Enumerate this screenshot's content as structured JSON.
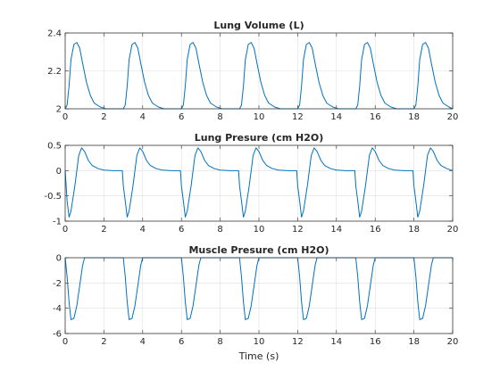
{
  "chart_data": [
    {
      "type": "line",
      "title": "Lung Volume (L)",
      "xlabel": "",
      "ylabel": "",
      "xlim": [
        0,
        20
      ],
      "ylim": [
        2,
        2.4
      ],
      "xticks": [
        "0",
        "2",
        "4",
        "6",
        "8",
        "10",
        "12",
        "14",
        "16",
        "18",
        "20"
      ],
      "yticks": [
        "2",
        "2.2",
        "2.4"
      ],
      "grid": true,
      "color": "#0072bd",
      "series": [
        {
          "x": [
            0,
            0.1,
            0.2,
            0.3,
            0.45,
            0.6,
            0.75,
            0.9,
            1.1,
            1.3,
            1.5,
            1.8,
            2.1,
            2.4,
            3.0,
            3.1,
            3.2,
            3.3,
            3.45,
            3.6,
            3.75,
            3.9,
            4.1,
            4.3,
            4.5,
            4.8,
            5.1,
            5.4,
            6.0,
            6.1,
            6.2,
            6.3,
            6.45,
            6.6,
            6.75,
            6.9,
            7.1,
            7.3,
            7.5,
            7.8,
            8.1,
            8.4,
            9.0,
            9.1,
            9.2,
            9.3,
            9.45,
            9.6,
            9.75,
            9.9,
            10.1,
            10.3,
            10.5,
            10.8,
            11.1,
            11.4,
            12.0,
            12.1,
            12.2,
            12.3,
            12.45,
            12.6,
            12.75,
            12.9,
            13.1,
            13.3,
            13.5,
            13.8,
            14.1,
            14.4,
            15.0,
            15.1,
            15.2,
            15.3,
            15.45,
            15.6,
            15.75,
            15.9,
            16.1,
            16.3,
            16.5,
            16.8,
            17.1,
            17.4,
            18.0,
            18.1,
            18.2,
            18.3,
            18.45,
            18.6,
            18.75,
            18.9,
            19.1,
            19.3,
            19.5,
            19.8,
            20.0
          ],
          "values": [
            2.0,
            2.02,
            2.12,
            2.26,
            2.34,
            2.35,
            2.32,
            2.24,
            2.14,
            2.07,
            2.03,
            2.01,
            2.0,
            2.0,
            2.0,
            2.02,
            2.12,
            2.26,
            2.34,
            2.35,
            2.32,
            2.24,
            2.14,
            2.07,
            2.03,
            2.01,
            2.0,
            2.0,
            2.0,
            2.02,
            2.12,
            2.26,
            2.34,
            2.35,
            2.32,
            2.24,
            2.14,
            2.07,
            2.03,
            2.01,
            2.0,
            2.0,
            2.0,
            2.02,
            2.12,
            2.26,
            2.34,
            2.35,
            2.32,
            2.24,
            2.14,
            2.07,
            2.03,
            2.01,
            2.0,
            2.0,
            2.0,
            2.02,
            2.12,
            2.26,
            2.34,
            2.35,
            2.32,
            2.24,
            2.14,
            2.07,
            2.03,
            2.01,
            2.0,
            2.0,
            2.0,
            2.02,
            2.12,
            2.26,
            2.34,
            2.35,
            2.32,
            2.24,
            2.14,
            2.07,
            2.03,
            2.01,
            2.0,
            2.0,
            2.0,
            2.02,
            2.12,
            2.26,
            2.34,
            2.35,
            2.32,
            2.24,
            2.14,
            2.07,
            2.03,
            2.01,
            2.0
          ]
        }
      ]
    },
    {
      "type": "line",
      "title": "Lung Presure (cm H2O)",
      "xlabel": "",
      "ylabel": "",
      "xlim": [
        0,
        20
      ],
      "ylim": [
        -1,
        0.5
      ],
      "xticks": [
        "0",
        "2",
        "4",
        "6",
        "8",
        "10",
        "12",
        "14",
        "16",
        "18",
        "20"
      ],
      "yticks": [
        "-1",
        "-0.5",
        "0",
        "0.5"
      ],
      "grid": true,
      "color": "#0072bd",
      "series": [
        {
          "x": [
            0,
            0.1,
            0.2,
            0.3,
            0.5,
            0.7,
            0.85,
            1.0,
            1.2,
            1.4,
            1.7,
            2.0,
            2.5,
            2.95,
            3.0,
            3.1,
            3.2,
            3.3,
            3.5,
            3.7,
            3.85,
            4.0,
            4.2,
            4.4,
            4.7,
            5.0,
            5.5,
            5.95,
            6.0,
            6.1,
            6.2,
            6.3,
            6.5,
            6.7,
            6.85,
            7.0,
            7.2,
            7.4,
            7.7,
            8.0,
            8.5,
            8.95,
            9.0,
            9.1,
            9.2,
            9.3,
            9.5,
            9.7,
            9.85,
            10.0,
            10.2,
            10.4,
            10.7,
            11.0,
            11.5,
            11.95,
            12.0,
            12.1,
            12.2,
            12.3,
            12.5,
            12.7,
            12.85,
            13.0,
            13.2,
            13.4,
            13.7,
            14.0,
            14.5,
            14.95,
            15.0,
            15.1,
            15.2,
            15.3,
            15.5,
            15.7,
            15.85,
            16.0,
            16.2,
            16.4,
            16.7,
            17.0,
            17.5,
            17.95,
            18.0,
            18.1,
            18.2,
            18.3,
            18.5,
            18.7,
            18.85,
            19.0,
            19.2,
            19.4,
            19.7,
            20.0
          ],
          "values": [
            0.0,
            -0.6,
            -0.92,
            -0.8,
            -0.3,
            0.3,
            0.45,
            0.38,
            0.2,
            0.1,
            0.04,
            0.01,
            0.0,
            0.0,
            -0.3,
            -0.6,
            -0.92,
            -0.8,
            -0.3,
            0.3,
            0.45,
            0.38,
            0.2,
            0.1,
            0.04,
            0.01,
            0.0,
            0.0,
            -0.3,
            -0.6,
            -0.92,
            -0.8,
            -0.3,
            0.3,
            0.45,
            0.38,
            0.2,
            0.1,
            0.04,
            0.01,
            0.0,
            0.0,
            -0.3,
            -0.6,
            -0.92,
            -0.8,
            -0.3,
            0.3,
            0.45,
            0.38,
            0.2,
            0.1,
            0.04,
            0.01,
            0.0,
            0.0,
            -0.3,
            -0.6,
            -0.92,
            -0.8,
            -0.3,
            0.3,
            0.45,
            0.38,
            0.2,
            0.1,
            0.04,
            0.01,
            0.0,
            0.0,
            -0.3,
            -0.6,
            -0.92,
            -0.8,
            -0.3,
            0.3,
            0.45,
            0.38,
            0.2,
            0.1,
            0.04,
            0.01,
            0.0,
            0.0,
            -0.3,
            -0.6,
            -0.92,
            -0.8,
            -0.3,
            0.3,
            0.45,
            0.38,
            0.2,
            0.1,
            0.04,
            0.0
          ]
        }
      ]
    },
    {
      "type": "line",
      "title": "Muscle Presure (cm H2O)",
      "xlabel": "Time (s)",
      "ylabel": "",
      "xlim": [
        0,
        20
      ],
      "ylim": [
        -6,
        0
      ],
      "xticks": [
        "0",
        "2",
        "4",
        "6",
        "8",
        "10",
        "12",
        "14",
        "16",
        "18",
        "20"
      ],
      "yticks": [
        "-6",
        "-4",
        "-2",
        "0"
      ],
      "grid": true,
      "color": "#0072bd",
      "series": [
        {
          "x": [
            0,
            0.1,
            0.2,
            0.3,
            0.45,
            0.6,
            0.75,
            0.9,
            1.0,
            2.9,
            3.0,
            3.1,
            3.2,
            3.3,
            3.45,
            3.6,
            3.75,
            3.9,
            4.0,
            5.9,
            6.0,
            6.1,
            6.2,
            6.3,
            6.45,
            6.6,
            6.75,
            6.9,
            7.0,
            8.9,
            9.0,
            9.1,
            9.2,
            9.3,
            9.45,
            9.6,
            9.75,
            9.9,
            10.0,
            11.9,
            12.0,
            12.1,
            12.2,
            12.3,
            12.45,
            12.6,
            12.75,
            12.9,
            13.0,
            14.9,
            15.0,
            15.1,
            15.2,
            15.3,
            15.45,
            15.6,
            15.75,
            15.9,
            16.0,
            17.9,
            18.0,
            18.1,
            18.2,
            18.3,
            18.45,
            18.6,
            18.75,
            18.9,
            19.0,
            20.0
          ],
          "values": [
            0,
            -1.5,
            -3.5,
            -4.9,
            -4.8,
            -3.8,
            -2.2,
            -0.6,
            0,
            0,
            0,
            -1.5,
            -3.5,
            -4.9,
            -4.8,
            -3.8,
            -2.2,
            -0.6,
            0,
            0,
            0,
            -1.5,
            -3.5,
            -4.9,
            -4.8,
            -3.8,
            -2.2,
            -0.6,
            0,
            0,
            0,
            -1.5,
            -3.5,
            -4.9,
            -4.8,
            -3.8,
            -2.2,
            -0.6,
            0,
            0,
            0,
            -1.5,
            -3.5,
            -4.9,
            -4.8,
            -3.8,
            -2.2,
            -0.6,
            0,
            0,
            0,
            -1.5,
            -3.5,
            -4.9,
            -4.8,
            -3.8,
            -2.2,
            -0.6,
            0,
            0,
            0,
            -1.5,
            -3.5,
            -4.9,
            -4.8,
            -3.8,
            -2.2,
            -0.6,
            0,
            0
          ]
        }
      ]
    }
  ]
}
